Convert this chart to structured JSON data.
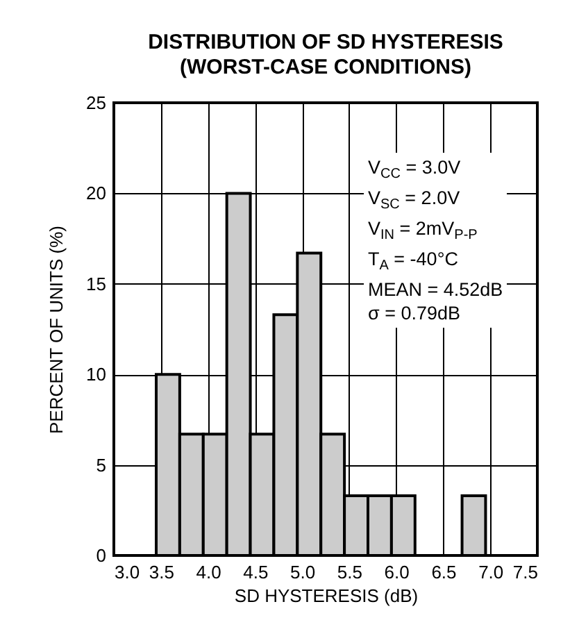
{
  "chart_data": {
    "type": "histogram",
    "title": "DISTRIBUTION OF SD HYSTERESIS\n(WORST-CASE CONDITIONS)",
    "xlabel": "SD HYSTERESIS (dB)",
    "ylabel": "PERCENT OF UNITS (%)",
    "bins": [
      3.45,
      3.7,
      3.95,
      4.2,
      4.45,
      4.7,
      4.95,
      5.2,
      5.45,
      5.7,
      5.95,
      6.2,
      6.45,
      6.7,
      6.95
    ],
    "values": [
      10,
      6.7,
      6.7,
      20,
      6.7,
      13.3,
      16.7,
      6.7,
      3.3,
      3.3,
      3.3,
      0,
      0,
      3.3
    ],
    "color": "#cccccc",
    "xlim": [
      3,
      7.5
    ],
    "xticks": [
      {
        "value": 3,
        "label": "3.0"
      },
      {
        "value": 3.5,
        "label": "3.5"
      },
      {
        "value": 4,
        "label": "4.0"
      },
      {
        "value": 4.5,
        "label": "4.5"
      },
      {
        "value": 5,
        "label": "5.0"
      },
      {
        "value": 5.5,
        "label": "5.5"
      },
      {
        "value": 6,
        "label": "6.0"
      },
      {
        "value": 6.5,
        "label": "6.5"
      },
      {
        "value": 7,
        "label": "7.0"
      },
      {
        "value": 7.5,
        "label": "7.5"
      }
    ],
    "ylim": [
      0,
      25
    ],
    "yticks": [
      0,
      5,
      10,
      15,
      20,
      25
    ],
    "grid": true,
    "annotations": [
      "V$_{CC}$ = 3.0V",
      "V$_{SC}$ = 2.0V",
      "V$_{IN}$ = 2mV$_{P-P}$",
      "T$_{A}$ = -40°C",
      "MEAN = 4.52dB",
      "σ = 0.79dB"
    ]
  }
}
